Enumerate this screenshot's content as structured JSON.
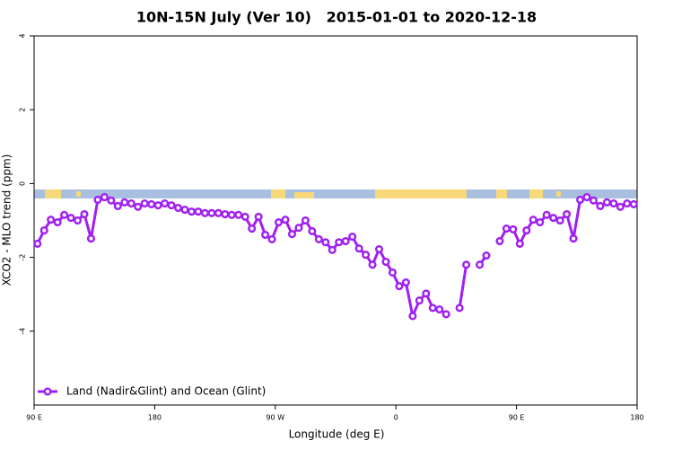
{
  "chart_data": {
    "type": "line",
    "title": "10N-15N July (Ver 10)   2015-01-01 to 2020-12-18",
    "x_label": "Longitude (deg E)",
    "y_label": "XCO2 - MLO trend (ppm)",
    "x": [
      92.5,
      97.5,
      102.5,
      107.5,
      112.5,
      117.5,
      122.5,
      127.5,
      132.5,
      137.5,
      142.5,
      147.5,
      152.5,
      157.5,
      162.5,
      167.5,
      172.5,
      177.5,
      182.5,
      187.5,
      192.5,
      197.5,
      202.5,
      207.5,
      212.5,
      217.5,
      222.5,
      227.5,
      232.5,
      237.5,
      242.5,
      247.5,
      252.5,
      257.5,
      262.5,
      267.5,
      272.5,
      277.5,
      282.5,
      287.5,
      292.5,
      297.5,
      302.5,
      307.5,
      312.5,
      317.5,
      322.5,
      327.5,
      332.5,
      337.5,
      342.5,
      347.5,
      352.5,
      357.5,
      362.5,
      367.5,
      372.5,
      377.5,
      382.5,
      387.5,
      392.5,
      397.5,
      402.5,
      407.5,
      412.5,
      417.5,
      422.5,
      427.5,
      432.5,
      437.5,
      442.5,
      447.5,
      452.5,
      457.5,
      462.5,
      467.5,
      472.5,
      477.5,
      482.5,
      487.5,
      492.5,
      497.5,
      502.5,
      507.5,
      512.5,
      517.5,
      522.5,
      527.5,
      532.5,
      537.5
    ],
    "series": [
      {
        "name": "Land (Nadir&Glint) and Ocean (Glint)",
        "color": "#a020f0",
        "values": [
          -1.63,
          -1.27,
          -0.98,
          -1.05,
          -0.85,
          -0.93,
          -1.0,
          -0.83,
          -1.49,
          -0.44,
          -0.37,
          -0.46,
          -0.61,
          -0.51,
          -0.54,
          -0.63,
          -0.54,
          -0.56,
          -0.59,
          -0.54,
          -0.59,
          -0.66,
          -0.71,
          -0.76,
          -0.76,
          -0.8,
          -0.8,
          -0.8,
          -0.83,
          -0.85,
          -0.85,
          -0.9,
          -1.22,
          -0.9,
          -1.39,
          -1.51,
          -1.05,
          -0.98,
          -1.37,
          -1.2,
          -1.0,
          -1.29,
          -1.51,
          -1.59,
          -1.8,
          -1.59,
          -1.56,
          -1.44,
          -1.76,
          -1.93,
          -2.2,
          -1.78,
          -2.12,
          -2.41,
          -2.78,
          -2.68,
          -3.59,
          -3.17,
          -2.98,
          -3.37,
          -3.41,
          -3.54,
          null,
          -3.37,
          -2.2,
          null,
          -2.2,
          -1.95,
          null,
          -1.56,
          -1.22,
          -1.24,
          -1.63,
          -1.27,
          -0.98,
          -1.05,
          -0.85,
          -0.93,
          -1.0,
          -0.83,
          -1.49,
          -0.44,
          -0.37,
          -0.46,
          -0.61,
          -0.51,
          -0.54,
          -0.63,
          -0.54,
          -0.56
        ]
      }
    ],
    "xlim": [
      90,
      540
    ],
    "ylim": [
      -6,
      4
    ],
    "xticks": [
      {
        "value": 90,
        "label": "90 E"
      },
      180,
      {
        "value": 270,
        "label": "90 W"
      },
      {
        "value": 360,
        "label": "0"
      },
      {
        "value": 450,
        "label": "90 E"
      },
      {
        "value": 540,
        "label": "180"
      }
    ],
    "yticks": [
      -4,
      -2,
      0,
      2,
      4
    ],
    "grid": false,
    "legend": "bottom-left"
  }
}
